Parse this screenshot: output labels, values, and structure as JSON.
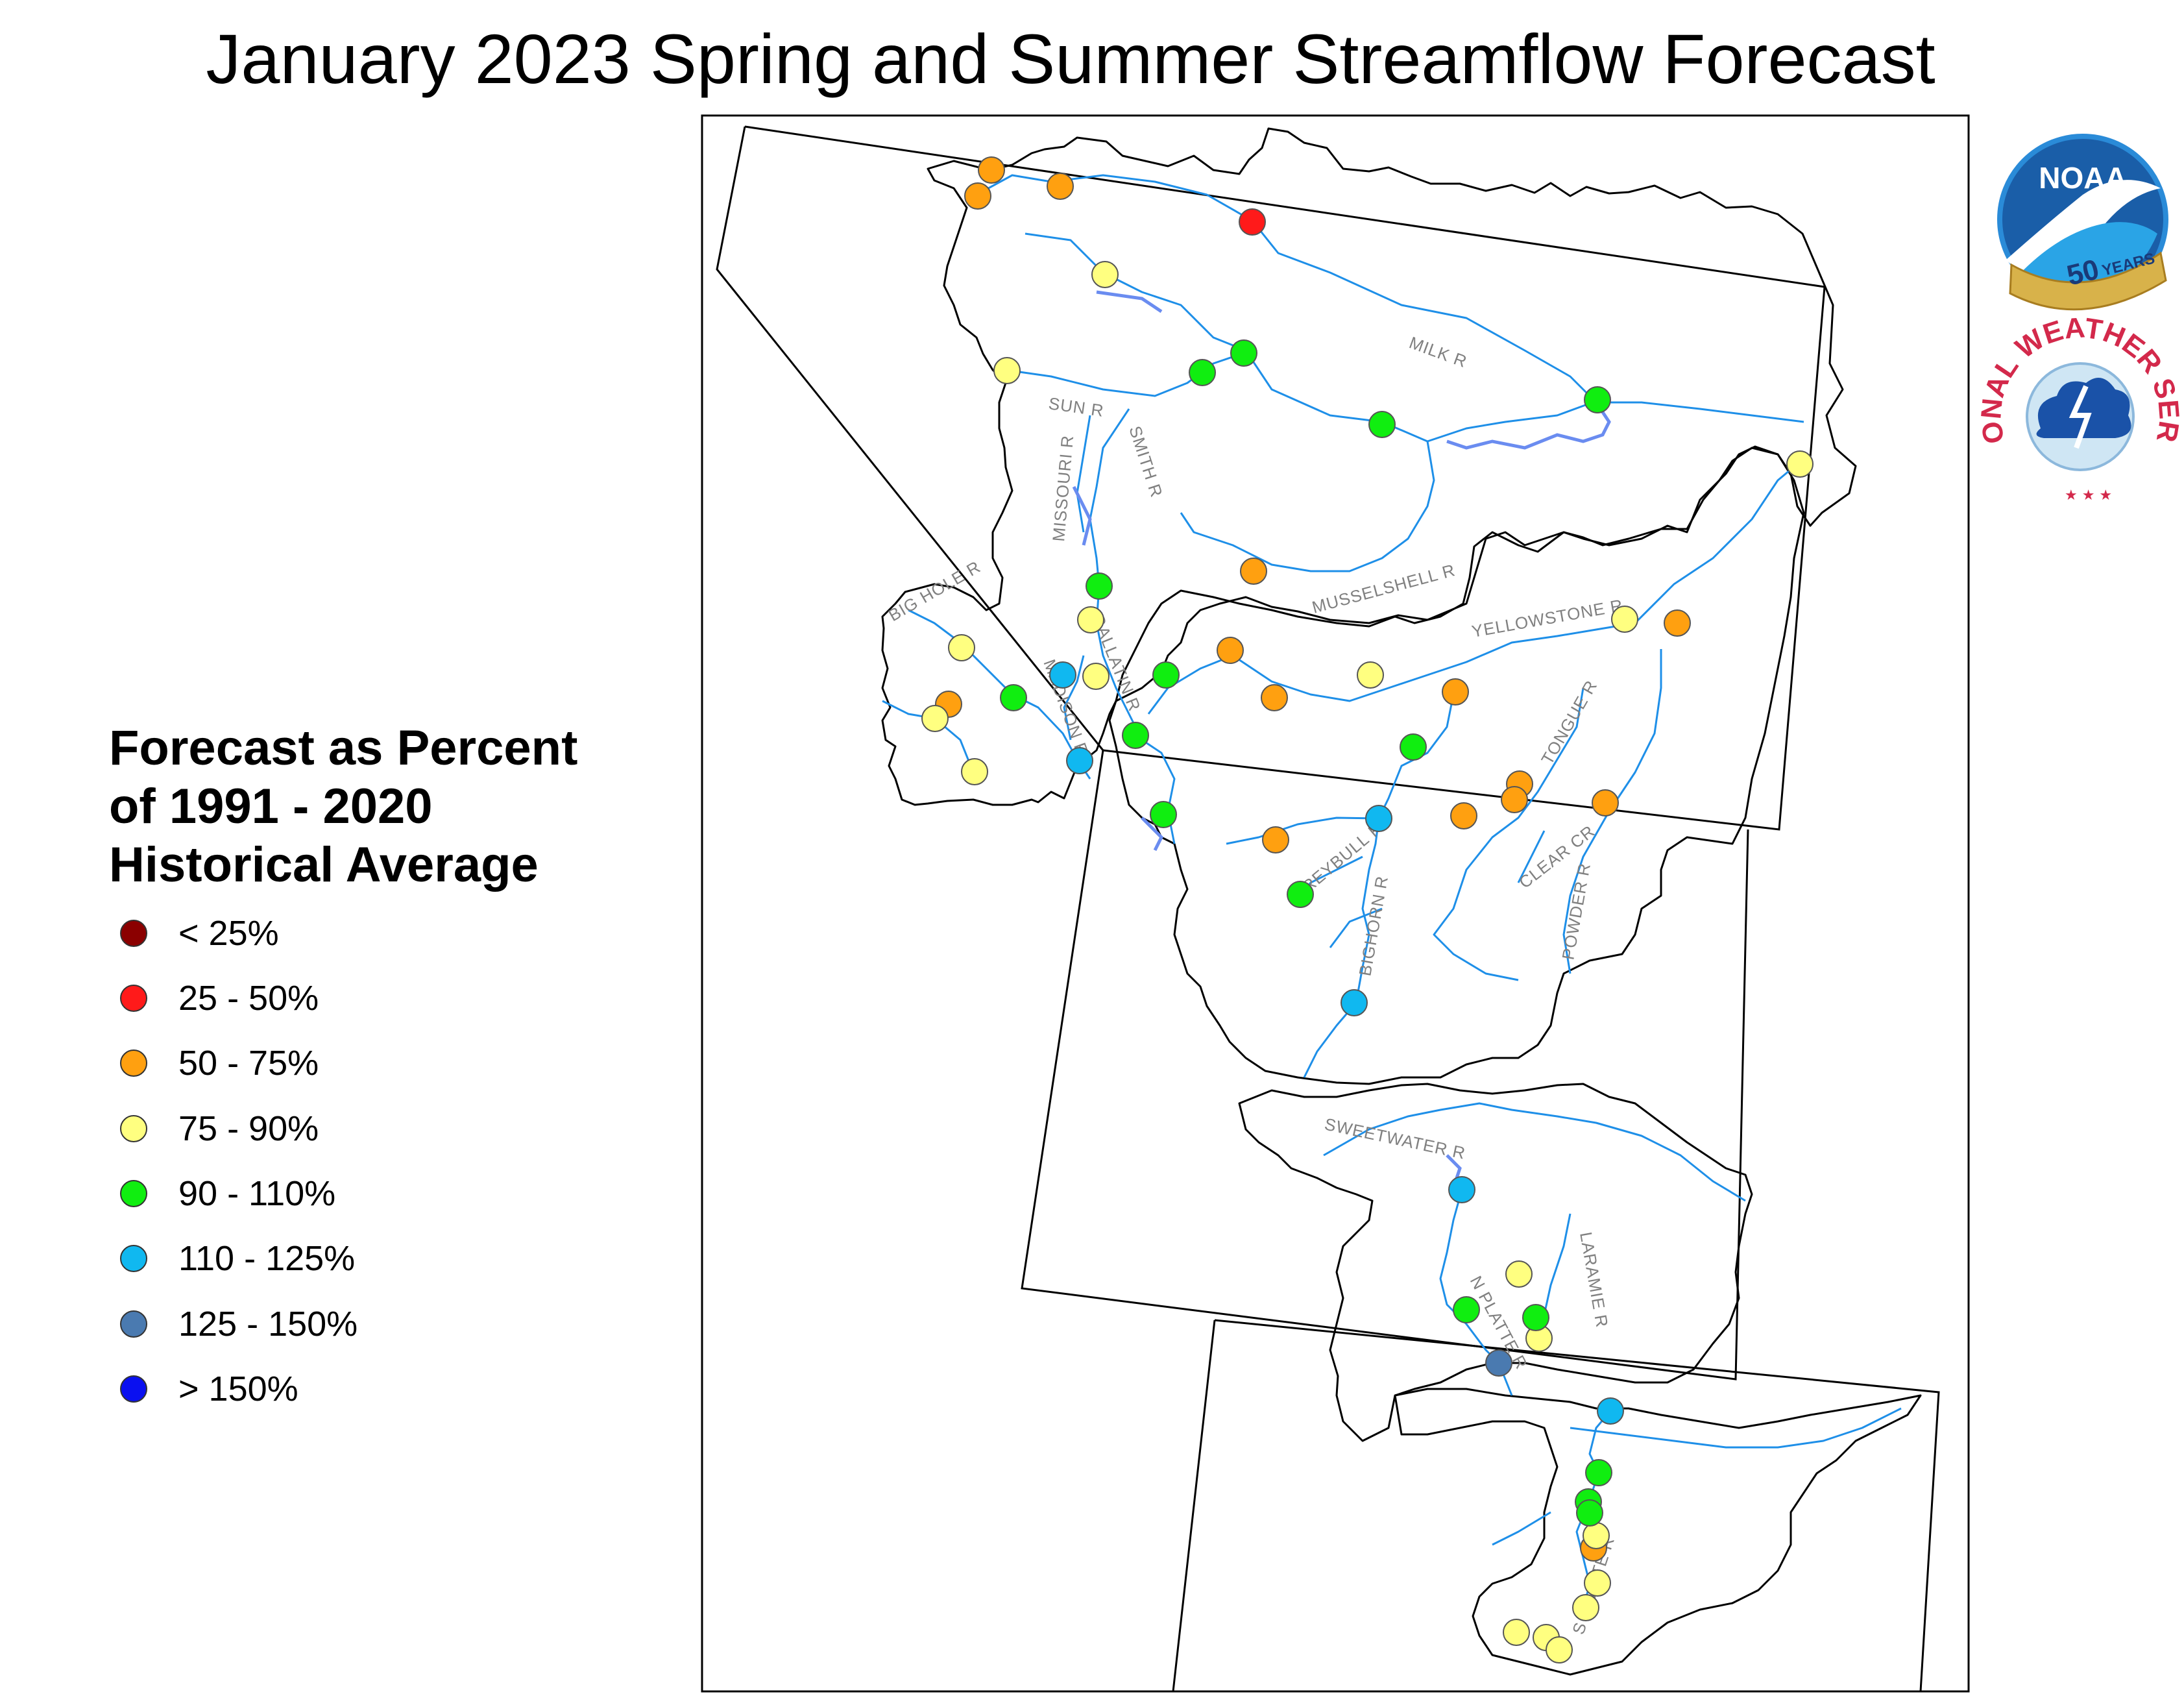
{
  "title": "January 2023 Spring and Summer Streamflow Forecast",
  "legend": {
    "title_lines": [
      "Forecast as Percent",
      "of 1991 - 2020",
      "Historical Average"
    ],
    "items": [
      {
        "label": "< 25%",
        "color": "#8b0000"
      },
      {
        "label": "25 - 50%",
        "color": "#ff1a1a"
      },
      {
        "label": "50 - 75%",
        "color": "#ffa010"
      },
      {
        "label": "75 - 90%",
        "color": "#ffff80"
      },
      {
        "label": "90 - 110%",
        "color": "#10ee10"
      },
      {
        "label": "110 - 125%",
        "color": "#10b8f0"
      },
      {
        "label": "125 - 150%",
        "color": "#4a7ab0"
      },
      {
        "label": "> 150%",
        "color": "#0a10f0"
      }
    ]
  },
  "logos": {
    "noaa_text": "NOAA",
    "noaa_anniversary_number": "50",
    "noaa_anniversary_word": "YEARS",
    "nws_text": "NATIONAL WEATHER SERVICE"
  },
  "rivers": [
    "MILK R",
    "SUN R",
    "MISSOURI R",
    "SMITH R",
    "MUSSELSHELL R",
    "BIG HOLE R",
    "GALLATIN R",
    "MADISON R",
    "YELLOWSTONE R",
    "TONGUE R",
    "CLEAR CR",
    "POWDER R",
    "GREYBULL R",
    "BIGHORN R",
    "SWEETWATER R",
    "LARAMIE R",
    "N PLATTE R",
    "S PLATTE R"
  ],
  "stations": {
    "lt25": [],
    "p25_50": [
      [
        1930,
        342
      ]
    ],
    "p50_75": [
      [
        1528,
        262
      ],
      [
        1507,
        302
      ],
      [
        1634,
        287
      ],
      [
        1932,
        880
      ],
      [
        1896,
        1002
      ],
      [
        1964,
        1075
      ],
      [
        2243,
        1066
      ],
      [
        2585,
        960
      ],
      [
        1462,
        1085
      ],
      [
        2342,
        1208
      ],
      [
        2256,
        1257
      ],
      [
        2334,
        1232
      ],
      [
        2474,
        1237
      ],
      [
        1966,
        1294
      ],
      [
        2456,
        2385
      ]
    ],
    "p75_90": [
      [
        1703,
        423
      ],
      [
        1552,
        571
      ],
      [
        2774,
        715
      ],
      [
        2504,
        954
      ],
      [
        1681,
        955
      ],
      [
        1482,
        998
      ],
      [
        2112,
        1040
      ],
      [
        1689,
        1042
      ],
      [
        1441,
        1107
      ],
      [
        1502,
        1189
      ],
      [
        2341,
        1963
      ],
      [
        2372,
        2062
      ],
      [
        2460,
        2366
      ],
      [
        2462,
        2439
      ],
      [
        2444,
        2477
      ],
      [
        2337,
        2515
      ],
      [
        2383,
        2523
      ],
      [
        2403,
        2542
      ]
    ],
    "p90_110": [
      [
        1917,
        544
      ],
      [
        1853,
        574
      ],
      [
        2130,
        654
      ],
      [
        2462,
        616
      ],
      [
        1694,
        903
      ],
      [
        1562,
        1075
      ],
      [
        1797,
        1040
      ],
      [
        1750,
        1133
      ],
      [
        2178,
        1151
      ],
      [
        1793,
        1255
      ],
      [
        2004,
        1378
      ],
      [
        2260,
        2018
      ],
      [
        2367,
        2030
      ],
      [
        2464,
        2269
      ],
      [
        2448,
        2314
      ],
      [
        2450,
        2331
      ]
    ],
    "p110_125": [
      [
        1638,
        1040
      ],
      [
        1664,
        1172
      ],
      [
        2125,
        1261
      ],
      [
        2087,
        1545
      ],
      [
        2253,
        1833
      ],
      [
        2482,
        2174
      ]
    ],
    "p125_150": [
      [
        2310,
        2100
      ]
    ],
    "gt150": []
  }
}
